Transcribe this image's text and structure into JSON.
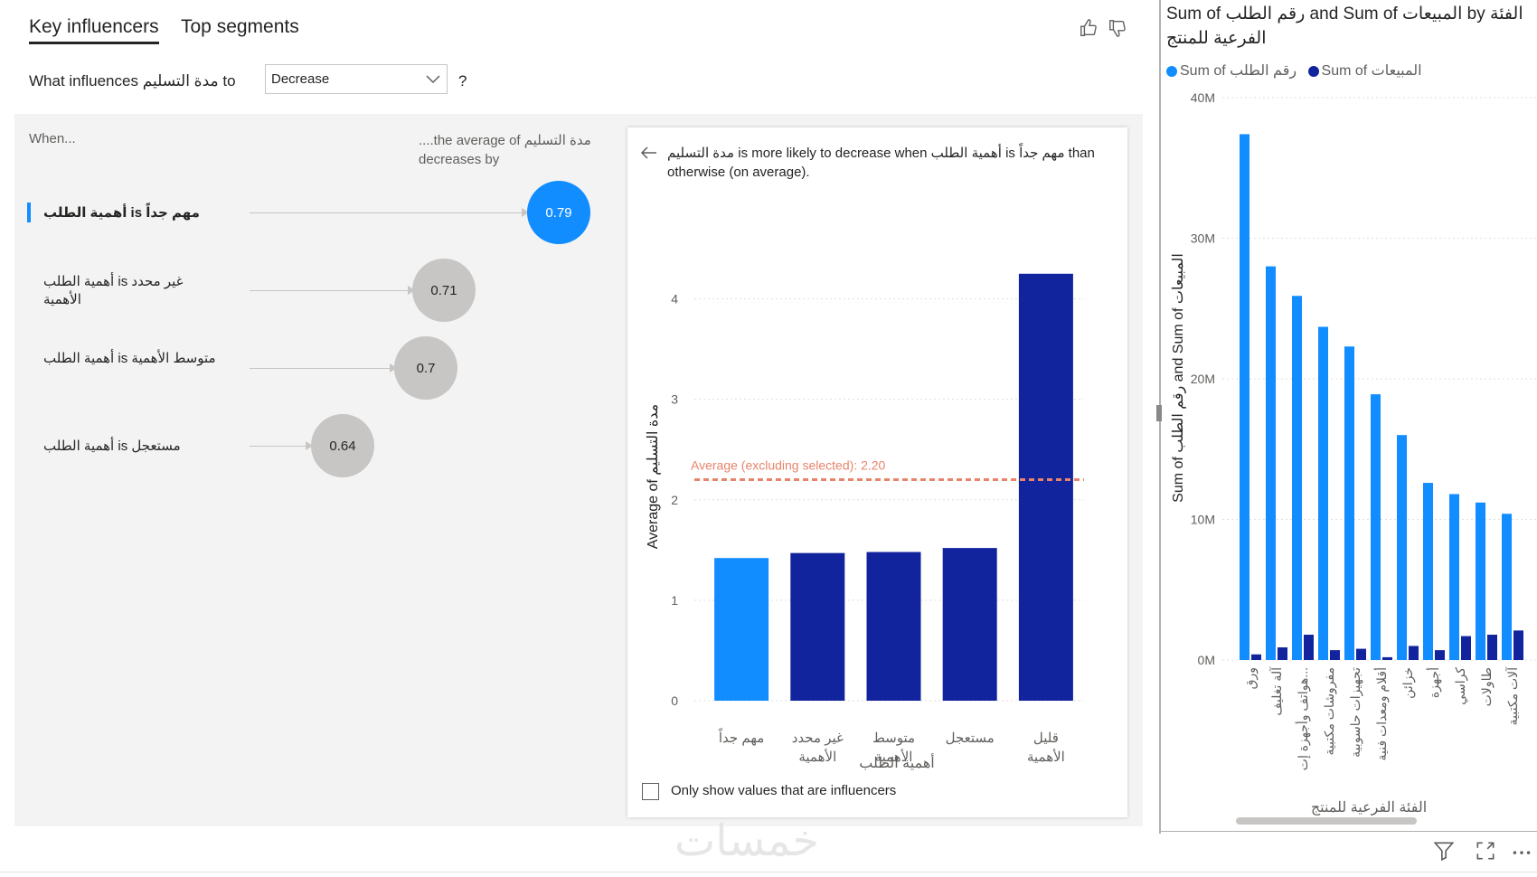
{
  "tabs": [
    {
      "label": "Key influencers",
      "active": true
    },
    {
      "label": "Top segments",
      "active": false
    }
  ],
  "question": {
    "prefix": "What influences مدة التسليم to",
    "dropdown_value": "Decrease",
    "suffix": "?"
  },
  "influencers_header": {
    "when": "When...",
    "average": "....the average of مدة التسليم decreases by"
  },
  "influencers": [
    {
      "label": "أهمية الطلب is مهم جداً",
      "value": "0.79",
      "selected": true
    },
    {
      "label": "أهمية الطلب is غير محدد الأهمية",
      "value": "0.71",
      "selected": false
    },
    {
      "label": "أهمية الطلب is متوسط الأهمية",
      "value": "0.7",
      "selected": false
    },
    {
      "label": "أهمية الطلب is مستعجل",
      "value": "0.64",
      "selected": false
    }
  ],
  "detail": {
    "title": "مدة التسليم is more likely to decrease when أهمية الطلب is مهم جداً than otherwise (on average).",
    "checkbox_label": "Only show values that are influencers"
  },
  "chart_data": [
    {
      "type": "bar",
      "ylabel": "Average of مدة التسليم",
      "xlabel": "أهمية الطلب",
      "ylim": [
        0,
        4.5
      ],
      "yticks": [
        "0",
        "1",
        "2",
        "3",
        "4"
      ],
      "categories": [
        {
          "lines": [
            "مهم جداً"
          ]
        },
        {
          "lines": [
            "غير محدد",
            "الأهمية"
          ]
        },
        {
          "lines": [
            "متوسط",
            "الأهمية"
          ]
        },
        {
          "lines": [
            "مستعجل"
          ]
        },
        {
          "lines": [
            "قليل",
            "الأهمية"
          ]
        }
      ],
      "values": [
        1.42,
        1.47,
        1.48,
        1.52,
        4.25
      ],
      "highlight_index": 0,
      "reference_line": {
        "label": "Average (excluding selected): 2.20",
        "value": 2.2
      },
      "colors": {
        "highlight": "#118dff",
        "other": "#12239e",
        "reference": "#e8846b"
      },
      "grid": true
    },
    {
      "type": "bar",
      "title": "Sum of رقم الطلب and Sum of المبيعات by الفئة الفرعية للمنتج",
      "xlabel": "الفئة الفرعية للمنتج",
      "ylabel": "Sum of رقم الطلب and Sum of المبيعات",
      "ylim": [
        0,
        40
      ],
      "yticks": [
        "0M",
        "10M",
        "20M",
        "30M",
        "40M"
      ],
      "categories": [
        "ورق",
        "آلة تغليف",
        "هواتف وأجهزة إت...",
        "مفروشات مكتبية",
        "تجهيزات حاسوبية",
        "أقلام ومعدات فنية",
        "خزائن",
        "أجهزة",
        "كراسي",
        "طاولات",
        "آلات مكتبية"
      ],
      "series": [
        {
          "name": "Sum of رقم الطلب",
          "color": "#118dff",
          "values": [
            37.4,
            28.0,
            25.9,
            23.7,
            22.3,
            18.9,
            16.0,
            12.6,
            11.8,
            11.2,
            10.4
          ]
        },
        {
          "name": "Sum of المبيعات",
          "color": "#12239e",
          "values": [
            0.4,
            0.9,
            1.8,
            0.7,
            0.8,
            0.2,
            1.0,
            0.7,
            1.7,
            1.8,
            2.1
          ]
        }
      ],
      "legend_position": "top-left",
      "grid": true
    }
  ],
  "watermark": "خمسات"
}
